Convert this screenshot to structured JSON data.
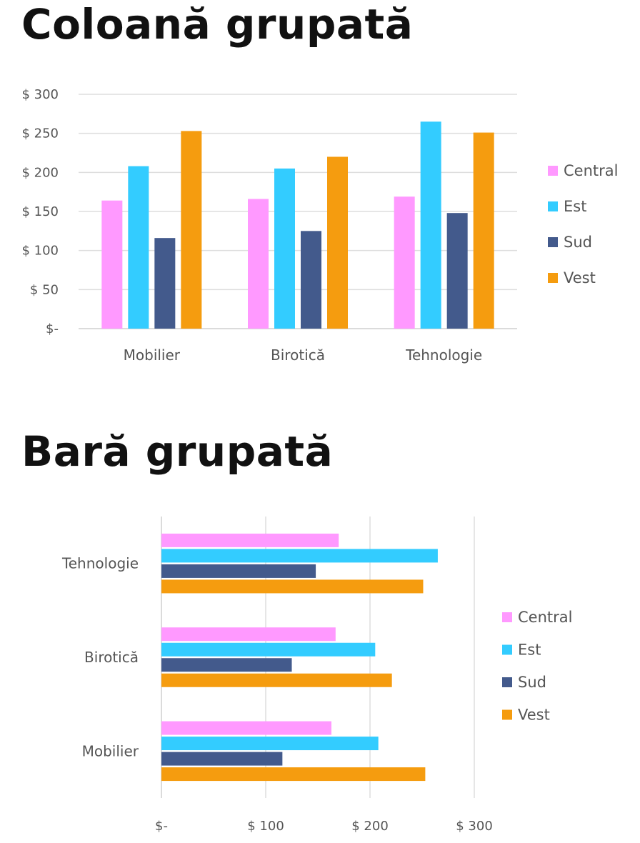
{
  "chart_data": [
    {
      "type": "bar",
      "orientation": "vertical",
      "title": "Coloană grupată",
      "categories": [
        "Mobilier",
        "Birotică",
        "Tehnologie"
      ],
      "series": [
        {
          "name": "Central",
          "color": "#ff99ff",
          "values": [
            164,
            166,
            169
          ]
        },
        {
          "name": "Est",
          "color": "#33ccff",
          "values": [
            208,
            205,
            265
          ]
        },
        {
          "name": "Sud",
          "color": "#435a8c",
          "values": [
            116,
            125,
            148
          ]
        },
        {
          "name": "Vest",
          "color": "#f59c0f",
          "values": [
            253,
            220,
            251
          ]
        }
      ],
      "y_ticks": [
        {
          "value": 0,
          "label": "$-"
        },
        {
          "value": 50,
          "label": "$ 50"
        },
        {
          "value": 100,
          "label": "$ 100"
        },
        {
          "value": 150,
          "label": "$ 150"
        },
        {
          "value": 200,
          "label": "$ 200"
        },
        {
          "value": 250,
          "label": "$ 250"
        },
        {
          "value": 300,
          "label": "$ 300"
        }
      ],
      "ylim": [
        0,
        300
      ],
      "grid": true,
      "legend_position": "right"
    },
    {
      "type": "bar",
      "orientation": "horizontal",
      "title": "Bară grupată",
      "categories": [
        "Tehnologie",
        "Birotică",
        "Mobilier"
      ],
      "series": [
        {
          "name": "Central",
          "color": "#ff99ff",
          "values": [
            170,
            167,
            163
          ]
        },
        {
          "name": "Est",
          "color": "#33ccff",
          "values": [
            265,
            205,
            208
          ]
        },
        {
          "name": "Sud",
          "color": "#435a8c",
          "values": [
            148,
            125,
            116
          ]
        },
        {
          "name": "Vest",
          "color": "#f59c0f",
          "values": [
            251,
            221,
            253
          ]
        }
      ],
      "x_ticks": [
        {
          "value": 0,
          "label": "$-"
        },
        {
          "value": 100,
          "label": "$ 100"
        },
        {
          "value": 200,
          "label": "$ 200"
        },
        {
          "value": 300,
          "label": "$ 300"
        }
      ],
      "xlim": [
        0,
        300
      ],
      "grid": true,
      "legend_position": "right"
    }
  ]
}
